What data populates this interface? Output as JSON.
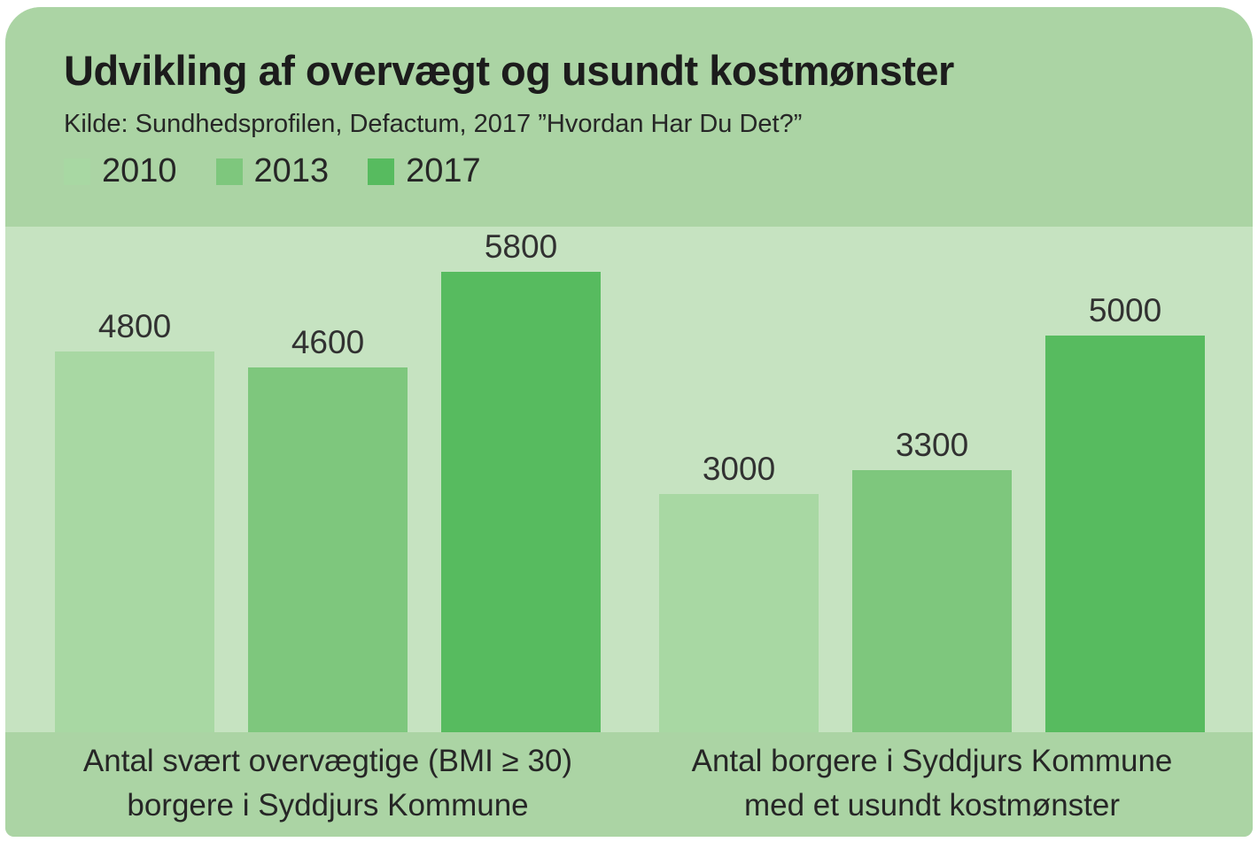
{
  "card": {
    "title": "Udvikling af overvægt og usundt kostmønster",
    "source": "Kilde: Sundhedsprofilen, Defactum, 2017 ”Hvordan Har Du Det?”"
  },
  "colors": {
    "page_background": "#ffffff",
    "band_green": "#abd4a4",
    "plot_background": "#c6e3c1",
    "series_2010": "#a8d8a3",
    "series_2013": "#7ec77d",
    "series_2017": "#57bb5f",
    "text": "#262626"
  },
  "chart_data": {
    "type": "bar",
    "title": "Udvikling af overvægt og usundt kostmønster",
    "source": "Kilde: Sundhedsprofilen, Defactum, 2017 ”Hvordan Har Du Det?”",
    "categories": [
      "Antal svært overvægtige (BMI ≥ 30) borgere i Syddjurs Kommune",
      "Antal borgere i Syddjurs Kommune med et usundt kostmønster"
    ],
    "category_lines": [
      [
        "Antal svært overvægtige (BMI ≥ 30)",
        "borgere i Syddjurs Kommune"
      ],
      [
        "Antal borgere i Syddjurs Kommune",
        "med et usundt kostmønster"
      ]
    ],
    "series": [
      {
        "name": "2010",
        "values": [
          4800,
          3000
        ],
        "color": "#a8d8a3"
      },
      {
        "name": "2013",
        "values": [
          4600,
          3300
        ],
        "color": "#7ec77d"
      },
      {
        "name": "2017",
        "values": [
          5800,
          5000
        ],
        "color": "#57bb5f"
      }
    ],
    "value_axis_max": 5800,
    "data_labels": true,
    "grid": false,
    "legend_position": "top-left"
  }
}
